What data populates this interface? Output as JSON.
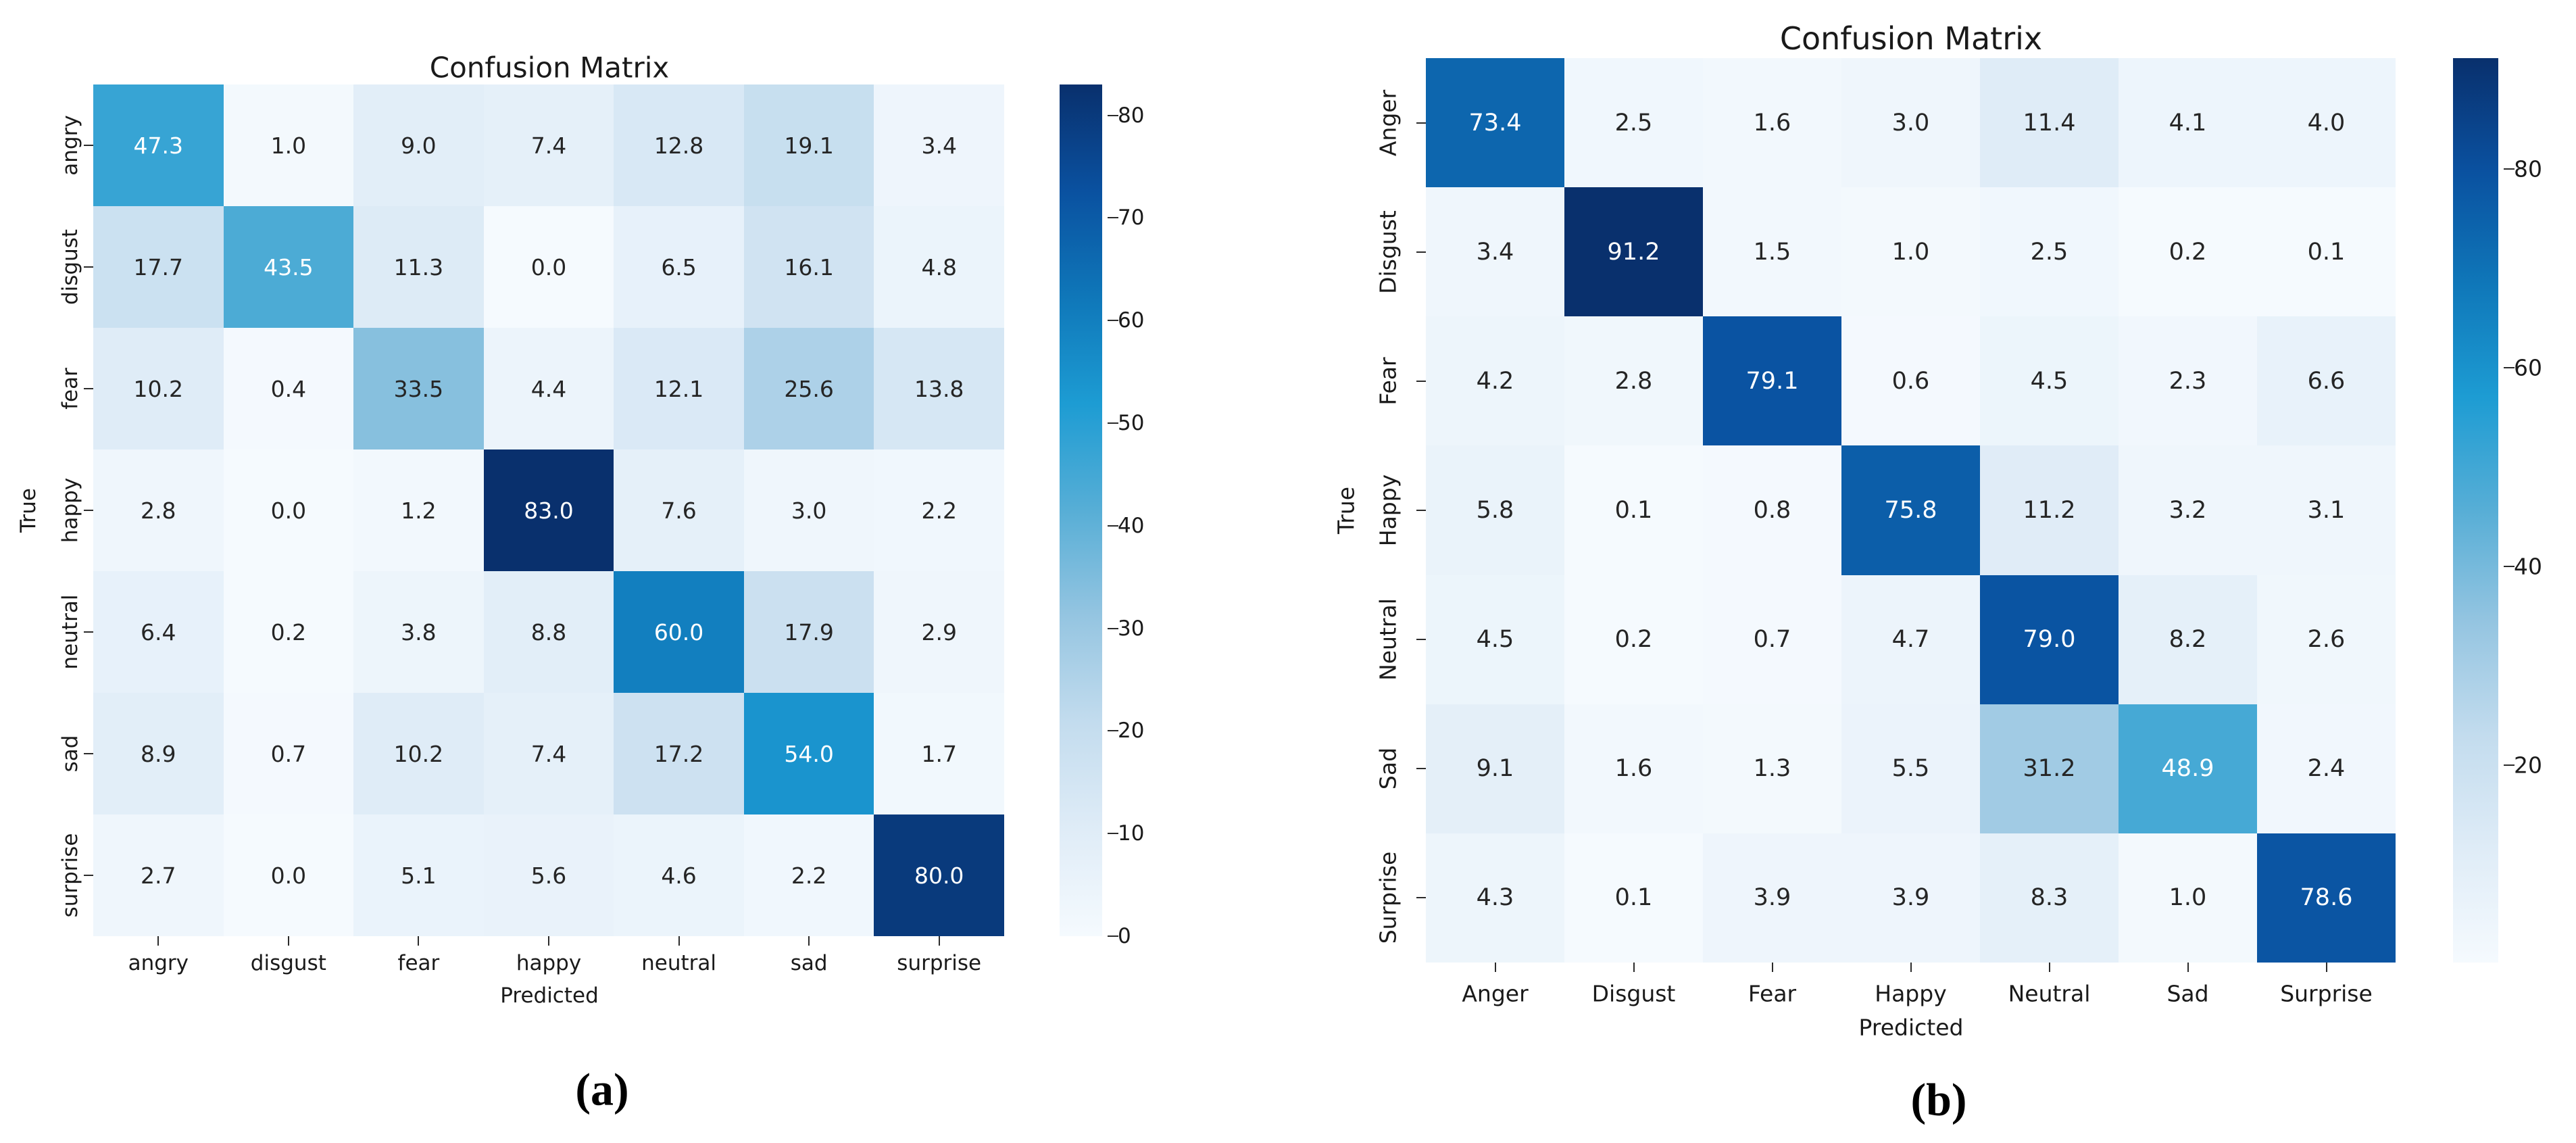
{
  "chart_data": [
    {
      "type": "heatmap",
      "panel": "a",
      "title": "Confusion Matrix",
      "xlabel": "Predicted",
      "ylabel": "True",
      "caption": "(a)",
      "x_tick_labels": [
        "angry",
        "disgust",
        "fear",
        "happy",
        "neutral",
        "sad",
        "surprise"
      ],
      "y_tick_labels": [
        "angry",
        "disgust",
        "fear",
        "happy",
        "neutral",
        "sad",
        "surprise"
      ],
      "values": [
        [
          47.3,
          1.0,
          9.0,
          7.4,
          12.8,
          19.1,
          3.4
        ],
        [
          17.7,
          43.5,
          11.3,
          0.0,
          6.5,
          16.1,
          4.8
        ],
        [
          10.2,
          0.4,
          33.5,
          4.4,
          12.1,
          25.6,
          13.8
        ],
        [
          2.8,
          0.0,
          1.2,
          83.0,
          7.6,
          3.0,
          2.2
        ],
        [
          6.4,
          0.2,
          3.8,
          8.8,
          60.0,
          17.9,
          2.9
        ],
        [
          8.9,
          0.7,
          10.2,
          7.4,
          17.2,
          54.0,
          1.7
        ],
        [
          2.7,
          0.0,
          5.1,
          5.6,
          4.6,
          2.2,
          80.0
        ]
      ],
      "vmin": 0.0,
      "vmax": 83.0,
      "colorbar_ticks": [
        0,
        10,
        20,
        30,
        40,
        50,
        60,
        70,
        80
      ],
      "colormap": "Blues",
      "legend_position": "right-colorbar",
      "grid": false
    },
    {
      "type": "heatmap",
      "panel": "b",
      "title": "Confusion Matrix",
      "xlabel": "Predicted",
      "ylabel": "True",
      "caption": "(b)",
      "x_tick_labels": [
        "Anger",
        "Disgust",
        "Fear",
        "Happy",
        "Neutral",
        "Sad",
        "Surprise"
      ],
      "y_tick_labels": [
        "Anger",
        "Disgust",
        "Fear",
        "Happy",
        "Neutral",
        "Sad",
        "Surprise"
      ],
      "values": [
        [
          73.4,
          2.5,
          1.6,
          3.0,
          11.4,
          4.1,
          4.0
        ],
        [
          3.4,
          91.2,
          1.5,
          1.0,
          2.5,
          0.2,
          0.1
        ],
        [
          4.2,
          2.8,
          79.1,
          0.6,
          4.5,
          2.3,
          6.6
        ],
        [
          5.8,
          0.1,
          0.8,
          75.8,
          11.2,
          3.2,
          3.1
        ],
        [
          4.5,
          0.2,
          0.7,
          4.7,
          79.0,
          8.2,
          2.6
        ],
        [
          9.1,
          1.6,
          1.3,
          5.5,
          31.2,
          48.9,
          2.4
        ],
        [
          4.3,
          0.1,
          3.9,
          3.9,
          8.3,
          1.0,
          78.6
        ]
      ],
      "vmin": 0.1,
      "vmax": 91.2,
      "colorbar_ticks": [
        20,
        40,
        60,
        80
      ],
      "colormap": "Blues",
      "legend_position": "right-colorbar",
      "grid": false
    }
  ],
  "colors": {
    "colormap_stops": [
      "#f5fafe",
      "#dfecf7",
      "#c3dcee",
      "#95c5e1",
      "#57aed6",
      "#1d9cd3",
      "#0f77b9",
      "#0a51a0",
      "#09306d"
    ],
    "cell_text_dark": "#252525",
    "cell_text_light": "#ffffff",
    "axis_text": "#1a1a1a",
    "background": "#ffffff"
  }
}
